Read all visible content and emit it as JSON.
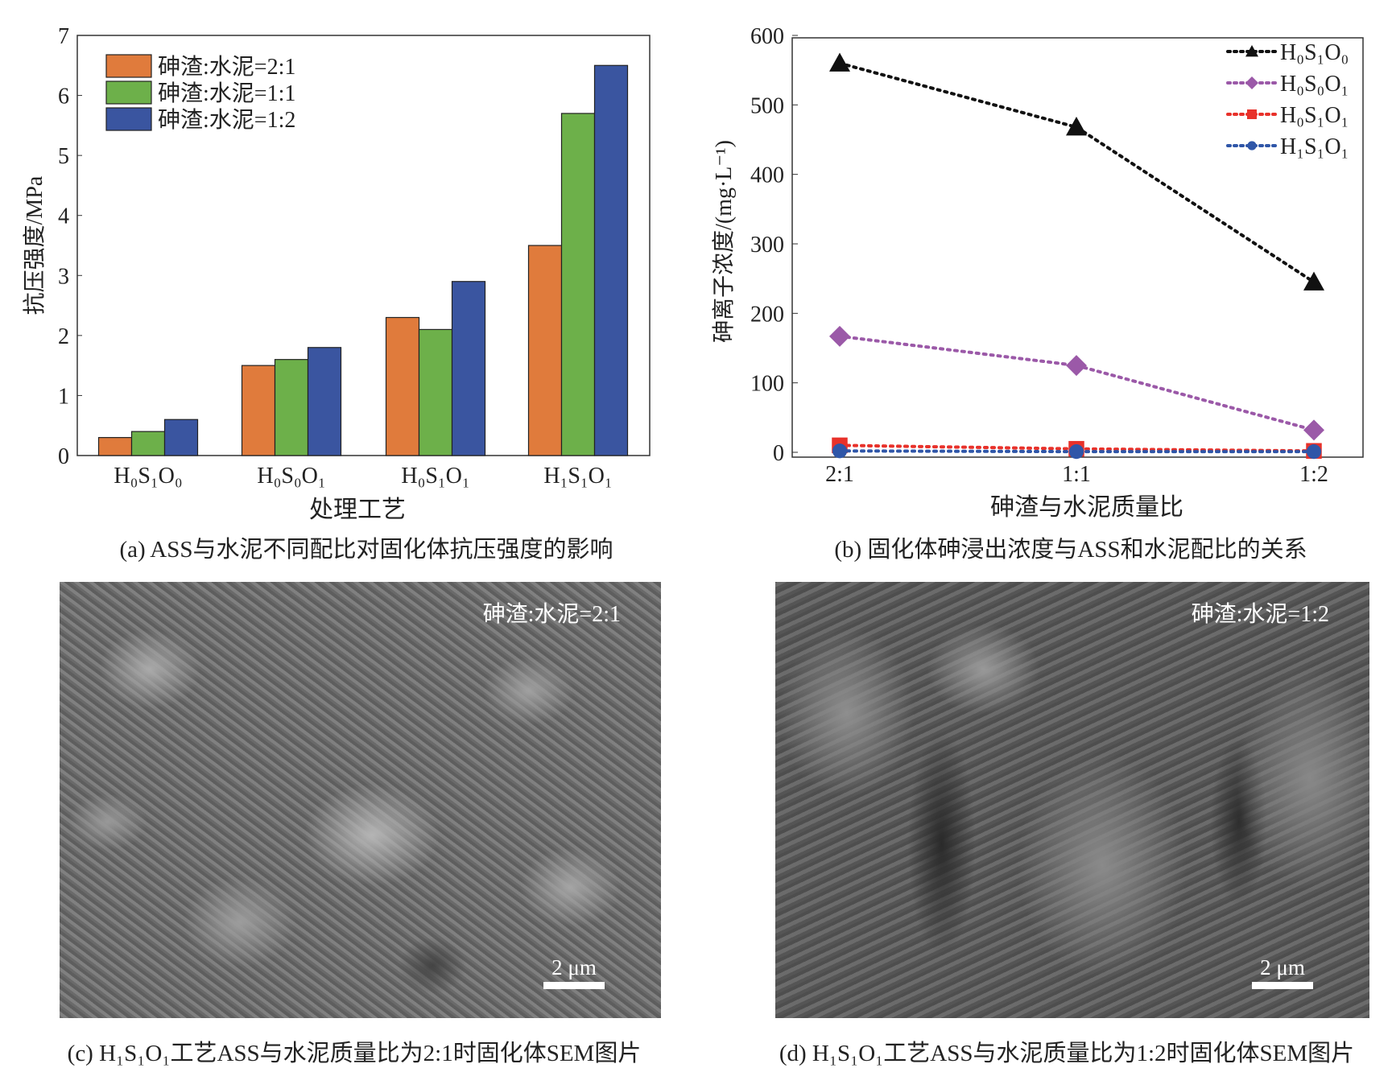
{
  "chart_data": [
    {
      "type": "bar",
      "title": "",
      "xlabel": "处理工艺",
      "ylabel": "抗压强度/MPa",
      "ylim": [
        0,
        7
      ],
      "yticks": [
        "0",
        "1",
        "2",
        "3",
        "4",
        "5",
        "6",
        "7"
      ],
      "categories": [
        "H₀S₁O₀",
        "H₀S₀O₁",
        "H₀S₁O₁",
        "H₁S₁O₁"
      ],
      "legend_position": "top-left",
      "series": [
        {
          "name": "砷渣:水泥=2:1",
          "color": "#e07b3c",
          "values": [
            0.3,
            1.5,
            2.3,
            3.5
          ]
        },
        {
          "name": "砷渣:水泥=1:1",
          "color": "#6db04a",
          "values": [
            0.4,
            1.6,
            2.1,
            5.7
          ]
        },
        {
          "name": "砷渣:水泥=1:2",
          "color": "#3a55a0",
          "values": [
            0.6,
            1.8,
            2.9,
            6.5
          ]
        }
      ],
      "caption": "(a) ASS与水泥不同配比对固化体抗压强度的影响"
    },
    {
      "type": "line",
      "title": "",
      "xlabel": "砷渣与水泥质量比",
      "ylabel": "砷离子浓度/(mg·L⁻¹)",
      "ylim": [
        0,
        600
      ],
      "yticks": [
        "0",
        "100",
        "200",
        "300",
        "400",
        "500",
        "600"
      ],
      "categories": [
        "2:1",
        "1:1",
        "1:2"
      ],
      "legend_position": "top-right",
      "series": [
        {
          "name": "H₀S₁O₀",
          "color": "#111111",
          "marker": "triangle",
          "values": [
            560,
            468,
            245
          ]
        },
        {
          "name": "H₀S₀O₁",
          "color": "#9b59a8",
          "marker": "diamond",
          "values": [
            167,
            125,
            32
          ]
        },
        {
          "name": "H₀S₁O₁",
          "color": "#e8312a",
          "marker": "square",
          "values": [
            10,
            5,
            2
          ]
        },
        {
          "name": "H₁S₁O₁",
          "color": "#2f56a8",
          "marker": "circle",
          "values": [
            2,
            1,
            1
          ]
        }
      ],
      "caption": "(b) 固化体砷浸出浓度与ASS和水泥配比的关系"
    }
  ],
  "sem": [
    {
      "label": "砷渣:水泥=2:1",
      "scale": "2 μm",
      "caption": "(c) H₁S₁O₁工艺ASS与水泥质量比为2:1时固化体SEM图片"
    },
    {
      "label": "砷渣:水泥=1:2",
      "scale": "2 μm",
      "caption": "(d) H₁S₁O₁工艺ASS与水泥质量比为1:2时固化体SEM图片"
    }
  ]
}
